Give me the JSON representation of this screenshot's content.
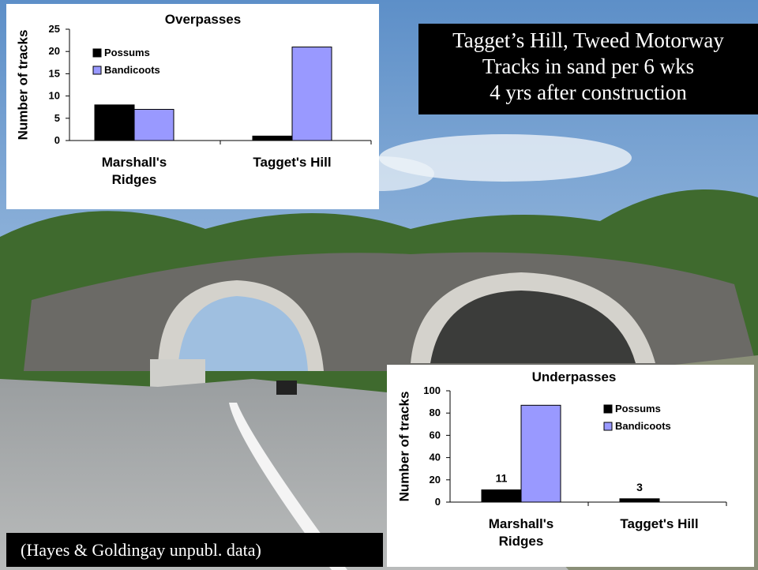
{
  "slide": {
    "heading": [
      "Tagget’s Hill, Tweed Motorway",
      "Tracks in sand per 6 wks",
      "4 yrs after construction"
    ],
    "citation": "(Hayes & Goldingay unpubl. data)"
  },
  "chart_data": [
    {
      "type": "bar",
      "title": "Overpasses",
      "y_label": "Number of tracks",
      "categories": [
        "Marshall's Ridges",
        "Tagget's Hill"
      ],
      "series": [
        {
          "name": "Possums",
          "color": "#000000",
          "values": [
            8,
            1
          ]
        },
        {
          "name": "Bandicoots",
          "color": "#9999ff",
          "values": [
            7,
            21
          ]
        }
      ],
      "ylim": [
        0,
        25
      ],
      "yticks": [
        0,
        5,
        10,
        15,
        20,
        25
      ]
    },
    {
      "type": "bar",
      "title": "Underpasses",
      "y_label": "Number of tracks",
      "categories": [
        "Marshall's Ridges",
        "Tagget's Hill"
      ],
      "series": [
        {
          "name": "Possums",
          "color": "#000000",
          "values": [
            11,
            3
          ],
          "show_labels": true
        },
        {
          "name": "Bandicoots",
          "color": "#9999ff",
          "values": [
            87,
            0
          ]
        }
      ],
      "ylim": [
        0,
        100
      ],
      "yticks": [
        0,
        20,
        40,
        60,
        80,
        100
      ]
    }
  ]
}
